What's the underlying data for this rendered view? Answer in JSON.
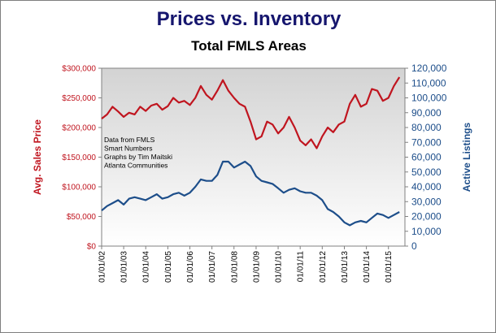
{
  "colors": {
    "price_series": "#c0151f",
    "listings_series": "#1d4e8a",
    "title": "#16166e",
    "plot_top": "#d3d3d3",
    "plot_bottom": "#ffffff"
  },
  "chart_data": {
    "type": "line",
    "title": "Prices vs. Inventory",
    "subtitle": "Total FMLS Areas",
    "ylabel_left": "Avg. Sales Price",
    "ylabel_right": "Active Listings",
    "xlabel": "",
    "x_tick_labels": [
      "01/01/02",
      "01/01/03",
      "01/01/04",
      "01/01/05",
      "01/01/06",
      "01/01/07",
      "01/01/08",
      "01/01/09",
      "01/01/10",
      "01/01/11",
      "01/01/12",
      "01/01/13",
      "01/01/14",
      "01/01/15"
    ],
    "y_left_tick_labels": [
      "$0",
      "$50,000",
      "$100,000",
      "$150,000",
      "$200,000",
      "$250,000",
      "$300,000"
    ],
    "y_right_tick_labels": [
      "0",
      "10,000",
      "20,000",
      "30,000",
      "40,000",
      "50,000",
      "60,000",
      "70,000",
      "80,000",
      "90,000",
      "100,000",
      "110,000",
      "120,000"
    ],
    "ylim_left": [
      0,
      300000
    ],
    "ylim_right": [
      0,
      120000
    ],
    "grid": false,
    "annotation": [
      "Data from FMLS",
      "Smart Numbers",
      "Graphs by Tim Maitski",
      "Atlanta Communities"
    ],
    "series": [
      {
        "axis": "left",
        "x": [
          "2002-01",
          "2002-04",
          "2002-07",
          "2002-10",
          "2003-01",
          "2003-04",
          "2003-07",
          "2003-10",
          "2004-01",
          "2004-04",
          "2004-07",
          "2004-10",
          "2005-01",
          "2005-04",
          "2005-07",
          "2005-10",
          "2006-01",
          "2006-04",
          "2006-07",
          "2006-10",
          "2007-01",
          "2007-04",
          "2007-07",
          "2007-10",
          "2008-01",
          "2008-04",
          "2008-07",
          "2008-10",
          "2009-01",
          "2009-04",
          "2009-07",
          "2009-10",
          "2010-01",
          "2010-04",
          "2010-07",
          "2010-10",
          "2011-01",
          "2011-04",
          "2011-07",
          "2011-10",
          "2012-01",
          "2012-04",
          "2012-07",
          "2012-10",
          "2013-01",
          "2013-04",
          "2013-07",
          "2013-10",
          "2014-01",
          "2014-04",
          "2014-07",
          "2014-10",
          "2015-01",
          "2015-04",
          "2015-07"
        ],
        "values": [
          215000,
          222000,
          235000,
          227000,
          218000,
          225000,
          222000,
          235000,
          228000,
          237000,
          240000,
          230000,
          236000,
          250000,
          242000,
          245000,
          238000,
          250000,
          270000,
          255000,
          247000,
          262000,
          280000,
          262000,
          250000,
          240000,
          235000,
          210000,
          180000,
          185000,
          210000,
          205000,
          190000,
          200000,
          218000,
          200000,
          178000,
          170000,
          180000,
          165000,
          185000,
          200000,
          192000,
          205000,
          210000,
          240000,
          255000,
          235000,
          240000,
          265000,
          262000,
          245000,
          250000,
          270000,
          285000
        ]
      },
      {
        "axis": "right",
        "x": [
          "2002-01",
          "2002-04",
          "2002-07",
          "2002-10",
          "2003-01",
          "2003-04",
          "2003-07",
          "2003-10",
          "2004-01",
          "2004-04",
          "2004-07",
          "2004-10",
          "2005-01",
          "2005-04",
          "2005-07",
          "2005-10",
          "2006-01",
          "2006-04",
          "2006-07",
          "2006-10",
          "2007-01",
          "2007-04",
          "2007-07",
          "2007-10",
          "2008-01",
          "2008-04",
          "2008-07",
          "2008-10",
          "2009-01",
          "2009-04",
          "2009-07",
          "2009-10",
          "2010-01",
          "2010-04",
          "2010-07",
          "2010-10",
          "2011-01",
          "2011-04",
          "2011-07",
          "2011-10",
          "2012-01",
          "2012-04",
          "2012-07",
          "2012-10",
          "2013-01",
          "2013-04",
          "2013-07",
          "2013-10",
          "2014-01",
          "2014-04",
          "2014-07",
          "2014-10",
          "2015-01",
          "2015-04",
          "2015-07"
        ],
        "values": [
          24000,
          27000,
          29000,
          31000,
          28000,
          32000,
          33000,
          32000,
          31000,
          33000,
          35000,
          32000,
          33000,
          35000,
          36000,
          34000,
          36000,
          40000,
          45000,
          44000,
          44000,
          48000,
          57000,
          57000,
          53000,
          55000,
          57000,
          54000,
          47000,
          44000,
          43000,
          42000,
          39000,
          36000,
          38000,
          39000,
          37000,
          36000,
          36000,
          34000,
          31000,
          25000,
          23000,
          20000,
          16000,
          14000,
          16000,
          17000,
          16000,
          19000,
          22000,
          21000,
          19000,
          21000,
          23000
        ]
      }
    ]
  }
}
